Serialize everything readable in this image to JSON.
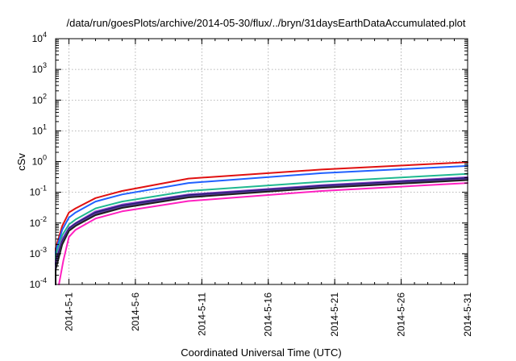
{
  "chart_data": {
    "type": "line",
    "title": "/data/run/goesPlots/archive/2014-05-30/flux/../bryn/31daysEarthDataAccumulated.plot",
    "xlabel": "Coordinated Universal Time (UTC)",
    "ylabel": "cSv",
    "y_scale": "log",
    "ylim": [
      0.0001,
      10000
    ],
    "y_ticks": [
      {
        "base": "10",
        "exp": "-4",
        "value": 0.0001
      },
      {
        "base": "10",
        "exp": "-3",
        "value": 0.001
      },
      {
        "base": "10",
        "exp": "-2",
        "value": 0.01
      },
      {
        "base": "10",
        "exp": "-1",
        "value": 0.1
      },
      {
        "base": "10",
        "exp": "0",
        "value": 1
      },
      {
        "base": "10",
        "exp": "1",
        "value": 10
      },
      {
        "base": "10",
        "exp": "2",
        "value": 100
      },
      {
        "base": "10",
        "exp": "3",
        "value": 1000
      },
      {
        "base": "10",
        "exp": "4",
        "value": 10000
      }
    ],
    "xlim": [
      "2014-04-30T00:00",
      "2014-05-31T00:00"
    ],
    "x_ticks": [
      {
        "label": "2014-5-1",
        "date": "2014-05-01"
      },
      {
        "label": "2014-5-6",
        "date": "2014-05-06"
      },
      {
        "label": "2014-5-11",
        "date": "2014-05-11"
      },
      {
        "label": "2014-5-16",
        "date": "2014-05-16"
      },
      {
        "label": "2014-5-21",
        "date": "2014-05-21"
      },
      {
        "label": "2014-5-26",
        "date": "2014-05-26"
      },
      {
        "label": "2014-5-31",
        "date": "2014-05-31"
      }
    ],
    "grid": true,
    "series": [
      {
        "color": "#e01010",
        "x": [
          "2014-04-30T00:00",
          "2014-04-30T12:00",
          "2014-05-01T00:00",
          "2014-05-01T12:00",
          "2014-05-03T00:00",
          "2014-05-05T00:00",
          "2014-05-10T00:00",
          "2014-05-20T00:00",
          "2014-05-31T00:00"
        ],
        "y": [
          0.0015,
          0.008,
          0.022,
          0.03,
          0.065,
          0.11,
          0.28,
          0.55,
          0.95
        ]
      },
      {
        "color": "#2060ff",
        "x": [
          "2014-04-30T00:00",
          "2014-04-30T12:00",
          "2014-05-01T00:00",
          "2014-05-01T12:00",
          "2014-05-03T00:00",
          "2014-05-05T00:00",
          "2014-05-10T00:00",
          "2014-05-20T00:00",
          "2014-05-31T00:00"
        ],
        "y": [
          0.0012,
          0.006,
          0.015,
          0.022,
          0.05,
          0.085,
          0.2,
          0.42,
          0.72
        ]
      },
      {
        "color": "#20b890",
        "x": [
          "2014-04-30T00:00",
          "2014-04-30T12:00",
          "2014-05-01T00:00",
          "2014-05-01T12:00",
          "2014-05-03T00:00",
          "2014-05-05T00:00",
          "2014-05-10T00:00",
          "2014-05-20T00:00",
          "2014-05-31T00:00"
        ],
        "y": [
          0.0009,
          0.004,
          0.009,
          0.013,
          0.03,
          0.05,
          0.11,
          0.22,
          0.4
        ]
      },
      {
        "color": "#9040d0",
        "x": [
          "2014-04-30T00:00",
          "2014-04-30T12:00",
          "2014-05-01T00:00",
          "2014-05-01T12:00",
          "2014-05-03T00:00",
          "2014-05-05T00:00",
          "2014-05-10T00:00",
          "2014-05-20T00:00",
          "2014-05-31T00:00"
        ],
        "y": [
          0.0006,
          0.003,
          0.007,
          0.01,
          0.024,
          0.04,
          0.085,
          0.17,
          0.31
        ]
      },
      {
        "color": "#1c1c6e",
        "x": [
          "2014-04-30T00:00",
          "2014-04-30T12:00",
          "2014-05-01T00:00",
          "2014-05-01T12:00",
          "2014-05-03T00:00",
          "2014-05-05T00:00",
          "2014-05-10T00:00",
          "2014-05-20T00:00",
          "2014-05-31T00:00"
        ],
        "y": [
          0.0005,
          0.0025,
          0.0065,
          0.0095,
          0.022,
          0.037,
          0.08,
          0.16,
          0.29
        ]
      },
      {
        "color": "#5a3a9a",
        "x": [
          "2014-04-30T00:00",
          "2014-04-30T12:00",
          "2014-05-01T00:00",
          "2014-05-01T12:00",
          "2014-05-03T00:00",
          "2014-05-05T00:00",
          "2014-05-10T00:00",
          "2014-05-20T00:00",
          "2014-05-31T00:00"
        ],
        "y": [
          0.0004,
          0.0022,
          0.006,
          0.0088,
          0.02,
          0.034,
          0.074,
          0.15,
          0.27
        ]
      },
      {
        "color": "#202020",
        "x": [
          "2014-04-30T00:00",
          "2014-04-30T12:00",
          "2014-05-01T00:00",
          "2014-05-01T12:00",
          "2014-05-03T00:00",
          "2014-05-05T00:00",
          "2014-05-10T00:00",
          "2014-05-20T00:00",
          "2014-05-31T00:00"
        ],
        "y": [
          0.0003,
          0.002,
          0.0055,
          0.008,
          0.018,
          0.031,
          0.068,
          0.14,
          0.25
        ]
      },
      {
        "color": "#ff20c0",
        "x": [
          "2014-04-30T06:00",
          "2014-04-30T14:00",
          "2014-05-01T00:00",
          "2014-05-01T12:00",
          "2014-05-03T00:00",
          "2014-05-05T00:00",
          "2014-05-10T00:00",
          "2014-05-20T00:00",
          "2014-05-31T00:00"
        ],
        "y": [
          0.0001,
          0.0006,
          0.0035,
          0.006,
          0.014,
          0.024,
          0.052,
          0.11,
          0.2
        ]
      }
    ]
  }
}
